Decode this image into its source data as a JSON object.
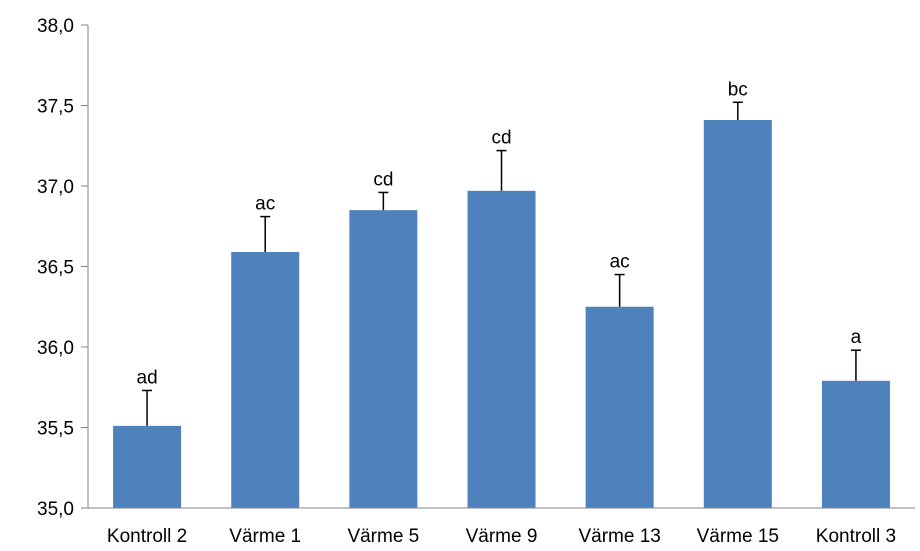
{
  "chart_data": {
    "type": "bar",
    "categories": [
      "Kontroll 2",
      "Värme 1",
      "Värme 5",
      "Värme 9",
      "Värme 13",
      "Värme 15",
      "Kontroll 3"
    ],
    "values": [
      35.51,
      36.59,
      36.85,
      36.97,
      36.25,
      37.41,
      35.79
    ],
    "error": [
      0.22,
      0.22,
      0.11,
      0.25,
      0.2,
      0.11,
      0.19
    ],
    "annotations": [
      "ad",
      "ac",
      "cd",
      "cd",
      "ac",
      "bc",
      "a"
    ],
    "ylim": [
      35.0,
      38.0
    ],
    "yticks": [
      35.0,
      35.5,
      36.0,
      36.5,
      37.0,
      37.5,
      38.0
    ],
    "ytick_labels": [
      "35,0",
      "35,5",
      "36,0",
      "36,5",
      "37,0",
      "37,5",
      "38,0"
    ],
    "title": "",
    "xlabel": "",
    "ylabel": "",
    "bar_color": "#4F81BD",
    "grid": false,
    "legend": "none"
  }
}
